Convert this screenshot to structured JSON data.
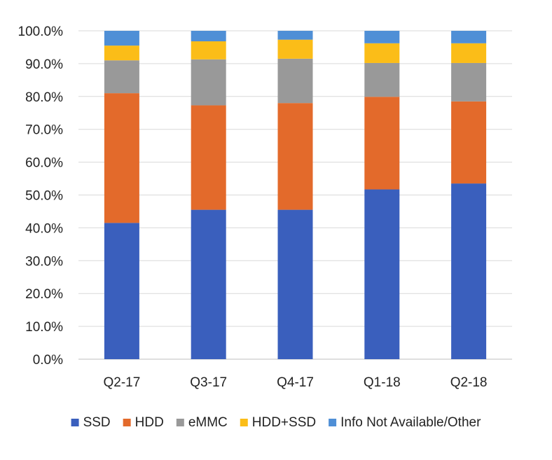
{
  "chart_data": {
    "type": "bar",
    "stacked": true,
    "categories": [
      "Q2-17",
      "Q3-17",
      "Q4-17",
      "Q1-18",
      "Q2-18"
    ],
    "series": [
      {
        "name": "SSD",
        "color": "#3a5fbd",
        "values": [
          41.5,
          45.5,
          45.5,
          51.7,
          53.5
        ]
      },
      {
        "name": "HDD",
        "color": "#e36a2b",
        "values": [
          39.5,
          31.8,
          32.5,
          28.2,
          25.0
        ]
      },
      {
        "name": "eMMC",
        "color": "#999999",
        "values": [
          10.0,
          14.0,
          13.5,
          10.3,
          11.7
        ]
      },
      {
        "name": "HDD+SSD",
        "color": "#fbbd18",
        "values": [
          4.5,
          5.5,
          5.8,
          6.0,
          6.0
        ]
      },
      {
        "name": "Info Not Available/Other",
        "color": "#4f8fd6",
        "values": [
          4.5,
          3.2,
          2.7,
          3.8,
          3.8
        ]
      }
    ],
    "ylim": [
      0,
      100
    ],
    "y_ticks": [
      0,
      10,
      20,
      30,
      40,
      50,
      60,
      70,
      80,
      90,
      100
    ],
    "y_tick_labels": [
      "0.0%",
      "10.0%",
      "20.0%",
      "30.0%",
      "40.0%",
      "50.0%",
      "60.0%",
      "70.0%",
      "80.0%",
      "90.0%",
      "100.0%"
    ],
    "grid": true,
    "legend_position": "bottom"
  }
}
